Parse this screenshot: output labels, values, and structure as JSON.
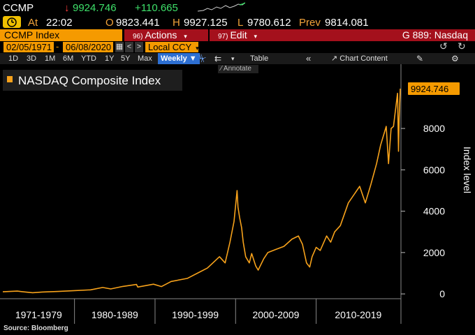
{
  "ticker": {
    "symbol": "CCMP",
    "direction_icon": "down-arrow-icon",
    "last": "9924.746",
    "change": "+110.665"
  },
  "quote": {
    "at_label": "At",
    "time": "22:02",
    "o_label": "O",
    "open": "9823.441",
    "h_label": "H",
    "high": "9927.125",
    "l_label": "L",
    "low": "9780.612",
    "prev_label": "Prev",
    "prev": "9814.081"
  },
  "header": {
    "security": "CCMP Index",
    "actions_num": "96)",
    "actions_label": "Actions",
    "edit_num": "97)",
    "edit_label": "Edit",
    "page_code": "G 889: Nasdaq"
  },
  "range": {
    "start": "02/05/1971",
    "end": "06/08/2020",
    "currency": "Local CCY"
  },
  "toolbar": {
    "periods": [
      "1D",
      "3D",
      "1M",
      "6M",
      "YTD",
      "1Y",
      "5Y",
      "Max"
    ],
    "frequency": "Weekly",
    "table_label": "Table",
    "chart_content_label": "Chart Content",
    "annotate_label": "Annotate"
  },
  "colors": {
    "accent_orange": "#f59a00",
    "line_orange": "#f7a21b",
    "header_red": "#a4101c",
    "up_green": "#3ee06a",
    "down_red": "#ff3b3b",
    "selected_blue": "#2d6fd2"
  },
  "source_label": "Source: Bloomberg",
  "chart_data": {
    "type": "line",
    "title": "",
    "legend": [
      "NASDAQ Composite Index"
    ],
    "legend_position": "top-left",
    "ylabel": "Index level",
    "ylim": [
      -300,
      10500
    ],
    "yticks": [
      0,
      2000,
      4000,
      6000,
      8000
    ],
    "xlim": [
      1971.1,
      2020.44
    ],
    "x_period_labels": [
      "1971-1979",
      "1980-1989",
      "1990-1999",
      "2000-2009",
      "2010-2019"
    ],
    "last_value_label": "9924.746",
    "grid": false,
    "series": [
      {
        "name": "NASDAQ Composite Index",
        "x": [
          1971.1,
          1972.9,
          1973.5,
          1974.8,
          1976.0,
          1978.0,
          1980.0,
          1982.0,
          1983.5,
          1984.5,
          1986.0,
          1987.7,
          1987.85,
          1989.8,
          1990.8,
          1992.0,
          1994.0,
          1995.5,
          1996.5,
          1998.0,
          1998.7,
          1999.3,
          1999.8,
          2000.18,
          2000.3,
          2000.5,
          2000.75,
          2000.95,
          2001.25,
          2001.7,
          2002.0,
          2002.5,
          2002.8,
          2003.5,
          2004.0,
          2005.0,
          2006.0,
          2007.0,
          2007.8,
          2008.3,
          2008.8,
          2009.2,
          2009.5,
          2010.0,
          2010.5,
          2011.3,
          2011.8,
          2012.3,
          2013.0,
          2014.0,
          2015.4,
          2016.1,
          2016.8,
          2017.5,
          2018.0,
          2018.7,
          2018.98,
          2019.3,
          2019.6,
          2020.1,
          2020.15,
          2020.22,
          2020.3,
          2020.44
        ],
        "y": [
          100,
          135,
          110,
          58,
          90,
          120,
          160,
          195,
          310,
          240,
          360,
          455,
          330,
          470,
          355,
          600,
          750,
          1050,
          1250,
          1800,
          1500,
          2500,
          3500,
          5000,
          4200,
          3700,
          3200,
          2500,
          1800,
          1500,
          1950,
          1350,
          1150,
          1700,
          2000,
          2150,
          2300,
          2650,
          2800,
          2400,
          1500,
          1300,
          1800,
          2250,
          2100,
          2800,
          2500,
          3000,
          3300,
          4400,
          5200,
          4400,
          5300,
          6300,
          7200,
          8100,
          6300,
          8000,
          8100,
          9700,
          8500,
          6900,
          8500,
          9924.746
        ]
      }
    ]
  }
}
